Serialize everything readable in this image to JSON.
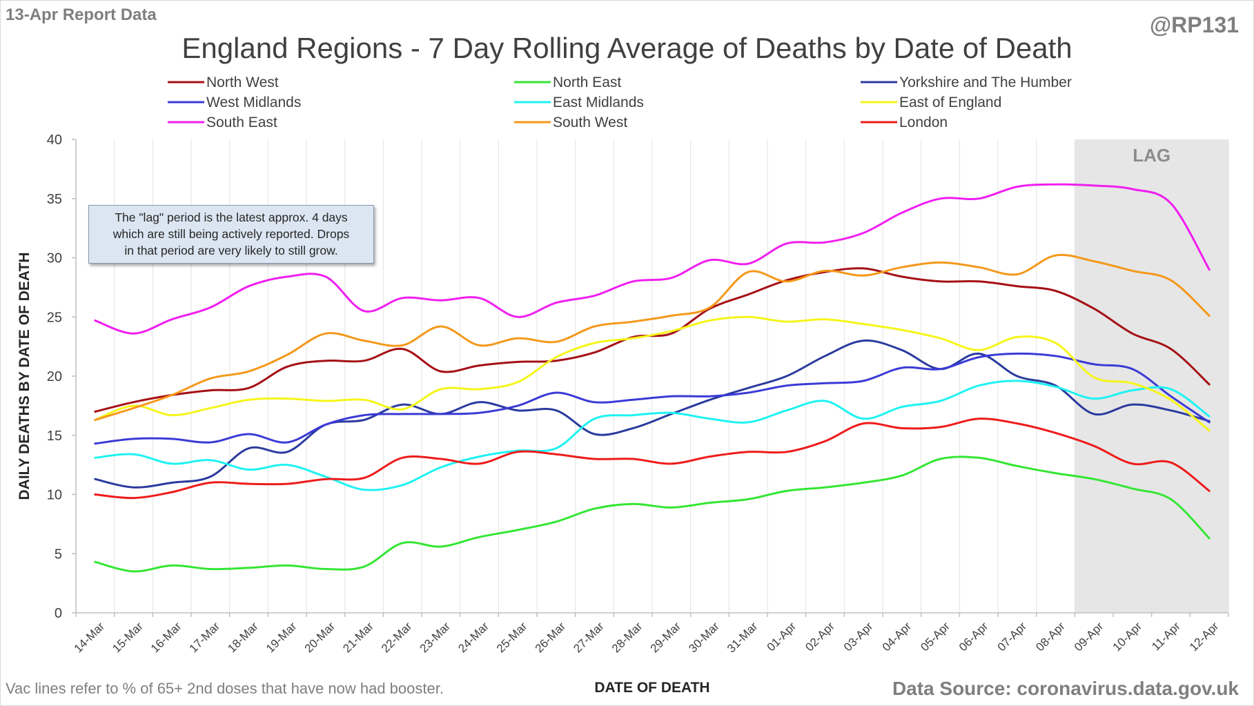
{
  "header": {
    "report_label": "13-Apr Report Data",
    "author_handle": "@RP131"
  },
  "footer": {
    "vac_note": "Vac lines refer to % of 65+ 2nd doses that have now had booster.",
    "data_source": "Data Source: coronavirus.data.gov.uk"
  },
  "note_box": {
    "text": "The \"lag\" period is the latest approx. 4 days\nwhich are still being actively reported.  Drops\nin that period are very likely to still grow."
  },
  "lag_label": "LAG",
  "chart_data": {
    "type": "line",
    "title": "England Regions - 7 Day Rolling Average of Deaths by Date of Death",
    "xlabel": "DATE OF DEATH",
    "ylabel": "DAILY DEATHS BY DATE OF DEATH",
    "ylim": [
      0,
      40
    ],
    "yticks": [
      0,
      5,
      10,
      15,
      20,
      25,
      30,
      35,
      40
    ],
    "grid": "vertical",
    "legend_position": "top",
    "lag_period": {
      "start": "09-Apr",
      "end": "12-Apr",
      "color": "#e6e6e6"
    },
    "categories": [
      "14-Mar",
      "15-Mar",
      "16-Mar",
      "17-Mar",
      "18-Mar",
      "19-Mar",
      "20-Mar",
      "21-Mar",
      "22-Mar",
      "23-Mar",
      "24-Mar",
      "25-Mar",
      "26-Mar",
      "27-Mar",
      "28-Mar",
      "29-Mar",
      "30-Mar",
      "31-Mar",
      "01-Apr",
      "02-Apr",
      "03-Apr",
      "04-Apr",
      "05-Apr",
      "06-Apr",
      "07-Apr",
      "08-Apr",
      "09-Apr",
      "10-Apr",
      "11-Apr",
      "12-Apr"
    ],
    "series": [
      {
        "name": "North West",
        "color": "#a50f15",
        "values": [
          17.0,
          17.8,
          18.4,
          18.8,
          19.0,
          20.8,
          21.3,
          21.3,
          22.3,
          20.4,
          20.9,
          21.2,
          21.3,
          22.0,
          23.3,
          23.6,
          25.7,
          26.9,
          28.1,
          28.8,
          29.1,
          28.4,
          28.0,
          28.0,
          27.6,
          27.2,
          25.7,
          23.6,
          22.3,
          19.3
        ]
      },
      {
        "name": "North East",
        "color": "#33e633",
        "values": [
          4.3,
          3.5,
          4.0,
          3.7,
          3.8,
          4.0,
          3.7,
          3.9,
          5.9,
          5.6,
          6.4,
          7.0,
          7.7,
          8.8,
          9.2,
          8.9,
          9.3,
          9.6,
          10.3,
          10.6,
          11.0,
          11.6,
          13.0,
          13.1,
          12.4,
          11.8,
          11.3,
          10.5,
          9.6,
          6.3
        ]
      },
      {
        "name": "Yorkshire and The Humber",
        "color": "#2b3a9e",
        "values": [
          11.3,
          10.6,
          11.0,
          11.5,
          13.9,
          13.6,
          15.9,
          16.3,
          17.6,
          16.8,
          17.8,
          17.1,
          17.1,
          15.1,
          15.6,
          16.8,
          18.0,
          19.0,
          20.0,
          21.7,
          23.0,
          22.2,
          20.6,
          21.9,
          20.0,
          19.2,
          16.8,
          17.6,
          17.1,
          16.2
        ]
      },
      {
        "name": "West Midlands",
        "color": "#3a3ad6",
        "values": [
          14.3,
          14.7,
          14.7,
          14.4,
          15.1,
          14.4,
          15.9,
          16.7,
          16.8,
          16.8,
          16.9,
          17.5,
          18.6,
          17.8,
          18.0,
          18.3,
          18.3,
          18.6,
          19.2,
          19.4,
          19.6,
          20.7,
          20.6,
          21.6,
          21.9,
          21.7,
          21.0,
          20.6,
          18.3,
          16.1
        ]
      },
      {
        "name": "East Midlands",
        "color": "#1ff2f2",
        "values": [
          13.1,
          13.4,
          12.6,
          12.9,
          12.1,
          12.5,
          11.5,
          10.4,
          10.8,
          12.3,
          13.2,
          13.7,
          13.9,
          16.4,
          16.7,
          16.9,
          16.4,
          16.1,
          17.1,
          17.9,
          16.4,
          17.4,
          17.9,
          19.2,
          19.6,
          19.1,
          18.1,
          18.8,
          18.9,
          16.6
        ]
      },
      {
        "name": "East of England",
        "color": "#f5f51a",
        "values": [
          16.3,
          17.5,
          16.7,
          17.3,
          18.0,
          18.1,
          17.9,
          18.0,
          17.2,
          18.9,
          18.9,
          19.5,
          21.6,
          22.8,
          23.2,
          23.8,
          24.7,
          25.0,
          24.6,
          24.8,
          24.4,
          23.9,
          23.2,
          22.2,
          23.3,
          22.8,
          19.9,
          19.4,
          18.0,
          15.4
        ]
      },
      {
        "name": "South East",
        "color": "#f01ef0",
        "values": [
          24.7,
          23.6,
          24.8,
          25.8,
          27.6,
          28.4,
          28.4,
          25.5,
          26.6,
          26.4,
          26.6,
          25.0,
          26.2,
          26.8,
          28.0,
          28.3,
          29.8,
          29.5,
          31.2,
          31.3,
          32.1,
          33.8,
          35.0,
          35.0,
          36.0,
          36.2,
          36.1,
          35.8,
          34.6,
          29.0
        ]
      },
      {
        "name": "South West",
        "color": "#f5981a",
        "values": [
          16.3,
          17.3,
          18.4,
          19.8,
          20.4,
          21.8,
          23.6,
          23.0,
          22.6,
          24.2,
          22.6,
          23.2,
          22.9,
          24.2,
          24.6,
          25.1,
          25.8,
          28.8,
          28.0,
          28.9,
          28.5,
          29.2,
          29.6,
          29.2,
          28.6,
          30.2,
          29.7,
          28.9,
          28.1,
          25.1
        ]
      },
      {
        "name": "London",
        "color": "#ee1b1b",
        "values": [
          10.0,
          9.7,
          10.2,
          11.0,
          10.9,
          10.9,
          11.3,
          11.4,
          13.1,
          13.0,
          12.6,
          13.6,
          13.4,
          13.0,
          13.0,
          12.6,
          13.2,
          13.6,
          13.6,
          14.5,
          16.0,
          15.6,
          15.7,
          16.4,
          16.0,
          15.2,
          14.1,
          12.6,
          12.7,
          10.3
        ]
      }
    ]
  }
}
